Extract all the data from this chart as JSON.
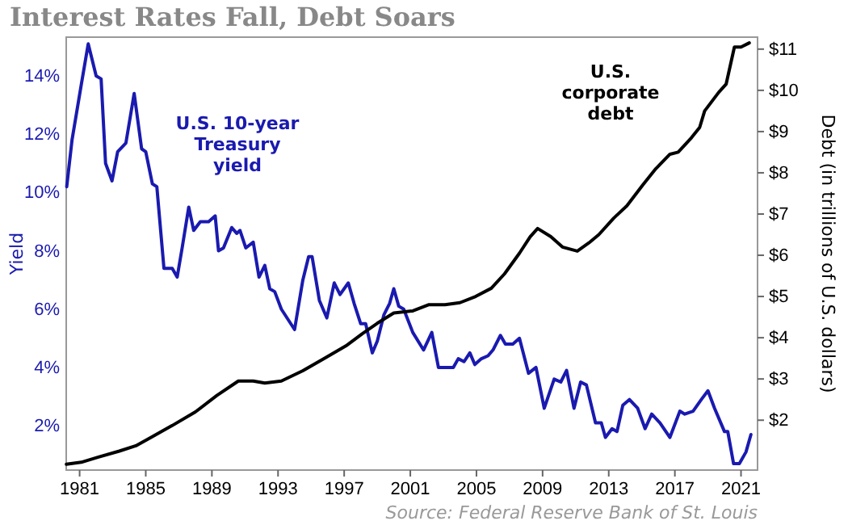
{
  "chart_data": {
    "type": "line",
    "title": "Interest Rates Fall, Debt Soars",
    "ylabel": "Yield",
    "y2label": "Debt (in trillions of U.S. dollars)",
    "annotations": [
      "Source: Federal Reserve Bank of St. Louis"
    ],
    "xlim": [
      1980.19,
      2022.0
    ],
    "xticks": [
      1981,
      1985,
      1989,
      1993,
      1997,
      2001,
      2005,
      2009,
      2013,
      2017,
      2021
    ],
    "ylim": [
      0.48,
      15.33
    ],
    "yticks": [
      {
        "value": 2,
        "label": "2%"
      },
      {
        "value": 4,
        "label": "4%"
      },
      {
        "value": 6,
        "label": "6%"
      },
      {
        "value": 8,
        "label": "8%"
      },
      {
        "value": 10,
        "label": "10%"
      },
      {
        "value": 12,
        "label": "12%"
      },
      {
        "value": 14,
        "label": "14%"
      }
    ],
    "y2lim": [
      0.79,
      11.29
    ],
    "y2ticks": [
      {
        "value": 2,
        "label": "$2"
      },
      {
        "value": 3,
        "label": "$3"
      },
      {
        "value": 4,
        "label": "$4"
      },
      {
        "value": 5,
        "label": "$5"
      },
      {
        "value": 6,
        "label": "$6"
      },
      {
        "value": 7,
        "label": "$7"
      },
      {
        "value": 8,
        "label": "$8"
      },
      {
        "value": 9,
        "label": "$9"
      },
      {
        "value": 10,
        "label": "$10"
      },
      {
        "value": 11,
        "label": "$11"
      }
    ],
    "grid": false,
    "legend": false,
    "marker": "none",
    "line_style": "solid",
    "series": [
      {
        "name": "U.S. 10-year Treasury yield",
        "color": "#1a1ab0",
        "x": [
          1980.22,
          1980.54,
          1981.1,
          1981.52,
          1982.0,
          1982.3,
          1982.57,
          1982.96,
          1983.3,
          1983.8,
          1984.3,
          1984.75,
          1985.0,
          1985.4,
          1985.67,
          1986.1,
          1986.6,
          1986.9,
          1987.2,
          1987.6,
          1987.9,
          1988.3,
          1988.8,
          1989.2,
          1989.4,
          1989.7,
          1990.2,
          1990.5,
          1990.7,
          1991.05,
          1991.5,
          1991.85,
          1992.2,
          1992.5,
          1992.8,
          1993.2,
          1994.0,
          1994.5,
          1994.85,
          1995.06,
          1995.5,
          1995.95,
          1996.4,
          1996.75,
          1997.25,
          1997.6,
          1998.0,
          1998.3,
          1998.7,
          1999.0,
          1999.4,
          1999.75,
          2000.0,
          2000.3,
          2000.6,
          2001.15,
          2001.8,
          2002.3,
          2002.7,
          2003.1,
          2003.6,
          2003.9,
          2004.25,
          2004.6,
          2004.9,
          2005.3,
          2005.7,
          2006.0,
          2006.45,
          2006.75,
          2007.2,
          2007.6,
          2008.15,
          2008.6,
          2009.1,
          2009.7,
          2010.1,
          2010.45,
          2010.9,
          2011.3,
          2011.65,
          2012.2,
          2012.55,
          2012.8,
          2013.2,
          2013.5,
          2013.85,
          2014.25,
          2014.75,
          2015.2,
          2015.6,
          2016.1,
          2016.7,
          2017.3,
          2017.6,
          2018.1,
          2018.6,
          2019.0,
          2019.4,
          2020.0,
          2020.2,
          2020.55,
          2020.9,
          2021.3,
          2021.6
        ],
        "values": [
          10.2,
          11.8,
          13.7,
          15.1,
          14.0,
          13.9,
          11.0,
          10.4,
          11.4,
          11.7,
          13.4,
          11.5,
          11.4,
          10.3,
          10.2,
          7.4,
          7.4,
          7.1,
          8.1,
          9.5,
          8.7,
          9.0,
          9.0,
          9.2,
          8.0,
          8.1,
          8.8,
          8.6,
          8.7,
          8.1,
          8.3,
          7.1,
          7.5,
          6.7,
          6.6,
          6.0,
          5.3,
          7.0,
          7.8,
          7.8,
          6.3,
          5.7,
          6.9,
          6.5,
          6.9,
          6.2,
          5.5,
          5.5,
          4.5,
          4.9,
          5.8,
          6.2,
          6.7,
          6.1,
          6.0,
          5.2,
          4.6,
          5.2,
          4.0,
          4.0,
          4.0,
          4.3,
          4.2,
          4.5,
          4.1,
          4.3,
          4.4,
          4.6,
          5.1,
          4.8,
          4.8,
          5.0,
          3.8,
          4.0,
          2.6,
          3.6,
          3.5,
          3.9,
          2.6,
          3.5,
          3.4,
          2.1,
          2.1,
          1.6,
          1.9,
          1.8,
          2.7,
          2.9,
          2.6,
          1.9,
          2.4,
          2.1,
          1.6,
          2.5,
          2.4,
          2.5,
          2.9,
          3.2,
          2.6,
          1.8,
          1.8,
          0.7,
          0.7,
          1.1,
          1.7
        ]
      },
      {
        "name": "U.S. corporate debt",
        "color": "#000000",
        "axis": "y2",
        "x": [
          1980.2,
          1981.1,
          1982.1,
          1983.4,
          1984.4,
          1985.3,
          1986.6,
          1988.0,
          1989.3,
          1990.6,
          1991.5,
          1992.2,
          1993.2,
          1994.5,
          1995.8,
          1997.1,
          1998.1,
          1999.0,
          2000.0,
          2001.15,
          2002.1,
          2003.1,
          2004.0,
          2004.95,
          2005.9,
          2006.7,
          2007.6,
          2008.25,
          2008.7,
          2009.5,
          2010.2,
          2011.1,
          2011.8,
          2012.4,
          2013.3,
          2014.1,
          2015.05,
          2015.85,
          2016.7,
          2017.2,
          2018.0,
          2018.5,
          2018.8,
          2019.65,
          2020.1,
          2020.6,
          2021.0,
          2021.5
        ],
        "values": [
          0.93,
          0.98,
          1.1,
          1.25,
          1.38,
          1.58,
          1.87,
          2.2,
          2.6,
          2.95,
          2.95,
          2.9,
          2.95,
          3.2,
          3.5,
          3.8,
          4.1,
          4.35,
          4.6,
          4.65,
          4.8,
          4.8,
          4.85,
          5.0,
          5.2,
          5.55,
          6.05,
          6.45,
          6.65,
          6.45,
          6.2,
          6.1,
          6.3,
          6.5,
          6.9,
          7.2,
          7.7,
          8.1,
          8.45,
          8.5,
          8.85,
          9.1,
          9.5,
          9.95,
          10.15,
          11.05,
          11.05,
          11.15
        ]
      }
    ]
  }
}
